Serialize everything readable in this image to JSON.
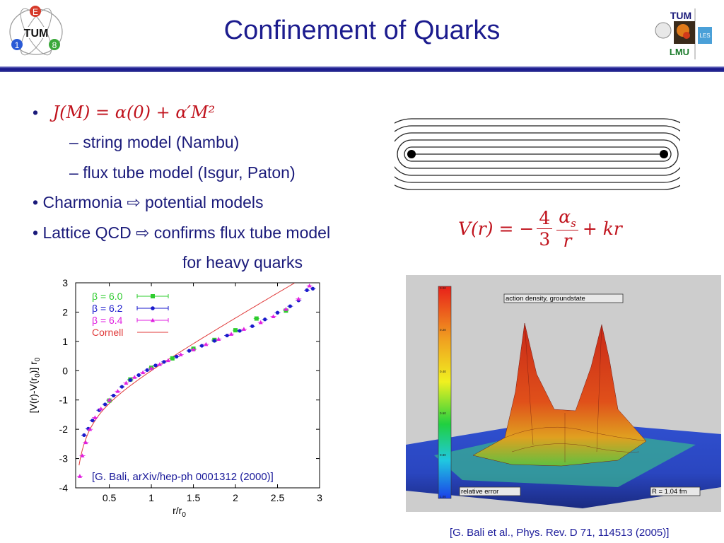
{
  "slide": {
    "title": "Confinement of Quarks",
    "bullets": [
      {
        "marker": "•",
        "text": ""
      },
      {
        "marker": "–",
        "text": "string model (Nambu)"
      },
      {
        "marker": "–",
        "text": "flux tube model (Isgur, Paton)"
      },
      {
        "marker": "•",
        "text": "Charmonia",
        "arrow": "⇨",
        "tail": "potential models"
      },
      {
        "marker": "•",
        "text": "Lattice QCD",
        "arrow": "⇨",
        "tail": "confirms flux tube model"
      },
      {
        "marker": "",
        "text": "for heavy quarks"
      }
    ],
    "formula_regge": "J(M) = α(0) + α′M²",
    "formula_potential": {
      "lhs": "V(r) = −",
      "num1": "4",
      "den1": "3",
      "num2": "α",
      "sub2": "s",
      "den2": "r",
      "tail": "+ kr"
    },
    "logo_left": {
      "letters": [
        "E",
        "1",
        "8"
      ],
      "center": "TUM"
    },
    "logo_right": {
      "top": "TUM",
      "bottom": "LMU",
      "badge": "LES"
    },
    "citation_left": "[G. Bali, arXiv/hep-ph 0001312 (2000)]",
    "citation_right": "[G. Bali et al., Phys. Rev. D 71, 114513 (2005)]",
    "render": {
      "label_top": "action density, groundstate",
      "label_bottom_left": "relative error",
      "label_bottom_right": "R = 1.04 fm",
      "colorbar_ticks": [
        "0.00",
        "0.20",
        "0.40",
        "0.60",
        "0.80",
        "1.00"
      ]
    }
  },
  "chart_data": {
    "type": "scatter",
    "xlabel": "r/r",
    "xlabel_sub": "0",
    "ylabel": "[V(r)-V(r",
    "ylabel_sub": "0",
    "ylabel_tail": ")] r",
    "ylabel_sub2": "0",
    "xlim": [
      0.1,
      3.0
    ],
    "ylim": [
      -4,
      3
    ],
    "xticks": [
      "0.5",
      "1",
      "1.5",
      "2",
      "2.5",
      "3"
    ],
    "yticks": [
      "-4",
      "-3",
      "-2",
      "-1",
      "0",
      "1",
      "2",
      "3"
    ],
    "legend": [
      {
        "name": "β = 6.0",
        "color": "#2ecc2e"
      },
      {
        "name": "β = 6.2",
        "color": "#1a1acc"
      },
      {
        "name": "β = 6.4",
        "color": "#e020e0"
      },
      {
        "name": "Cornell",
        "color": "#e03a3a"
      }
    ],
    "series": [
      {
        "name": "β = 6.0",
        "color": "#2ecc2e",
        "points": [
          [
            0.5,
            -1.02
          ],
          [
            0.75,
            -0.3
          ],
          [
            1.0,
            0.1
          ],
          [
            1.25,
            0.42
          ],
          [
            1.5,
            0.75
          ],
          [
            1.75,
            1.05
          ],
          [
            2.0,
            1.38
          ],
          [
            2.25,
            1.78
          ],
          [
            2.6,
            2.05
          ]
        ]
      },
      {
        "name": "β = 6.2",
        "color": "#1a1acc",
        "points": [
          [
            0.2,
            -2.2
          ],
          [
            0.25,
            -1.98
          ],
          [
            0.3,
            -1.7
          ],
          [
            0.38,
            -1.35
          ],
          [
            0.45,
            -1.15
          ],
          [
            0.55,
            -0.85
          ],
          [
            0.65,
            -0.55
          ],
          [
            0.75,
            -0.32
          ],
          [
            0.85,
            -0.15
          ],
          [
            0.95,
            0.02
          ],
          [
            1.05,
            0.18
          ],
          [
            1.15,
            0.3
          ],
          [
            1.3,
            0.48
          ],
          [
            1.45,
            0.68
          ],
          [
            1.6,
            0.85
          ],
          [
            1.75,
            1.02
          ],
          [
            1.9,
            1.2
          ],
          [
            2.05,
            1.36
          ],
          [
            2.2,
            1.52
          ],
          [
            2.35,
            1.75
          ],
          [
            2.5,
            1.98
          ],
          [
            2.65,
            2.2
          ],
          [
            2.75,
            2.4
          ],
          [
            2.85,
            2.75
          ],
          [
            2.92,
            2.8
          ]
        ]
      },
      {
        "name": "β = 6.4",
        "color": "#e020e0",
        "points": [
          [
            0.15,
            -3.6
          ],
          [
            0.18,
            -2.9
          ],
          [
            0.22,
            -2.45
          ],
          [
            0.27,
            -2.0
          ],
          [
            0.33,
            -1.6
          ],
          [
            0.4,
            -1.3
          ],
          [
            0.5,
            -1.0
          ],
          [
            0.6,
            -0.7
          ],
          [
            0.7,
            -0.42
          ],
          [
            0.8,
            -0.22
          ],
          [
            0.9,
            -0.06
          ],
          [
            1.0,
            0.08
          ],
          [
            1.1,
            0.22
          ],
          [
            1.2,
            0.35
          ],
          [
            1.35,
            0.55
          ],
          [
            1.5,
            0.72
          ],
          [
            1.65,
            0.9
          ],
          [
            1.8,
            1.08
          ],
          [
            1.95,
            1.25
          ],
          [
            2.1,
            1.42
          ],
          [
            2.3,
            1.65
          ],
          [
            2.45,
            1.85
          ],
          [
            2.6,
            2.1
          ],
          [
            2.75,
            2.45
          ],
          [
            2.88,
            2.9
          ]
        ]
      }
    ],
    "cornell": {
      "name": "Cornell",
      "color": "#e03a3a",
      "e": 0.295,
      "c": 1.65
    }
  }
}
